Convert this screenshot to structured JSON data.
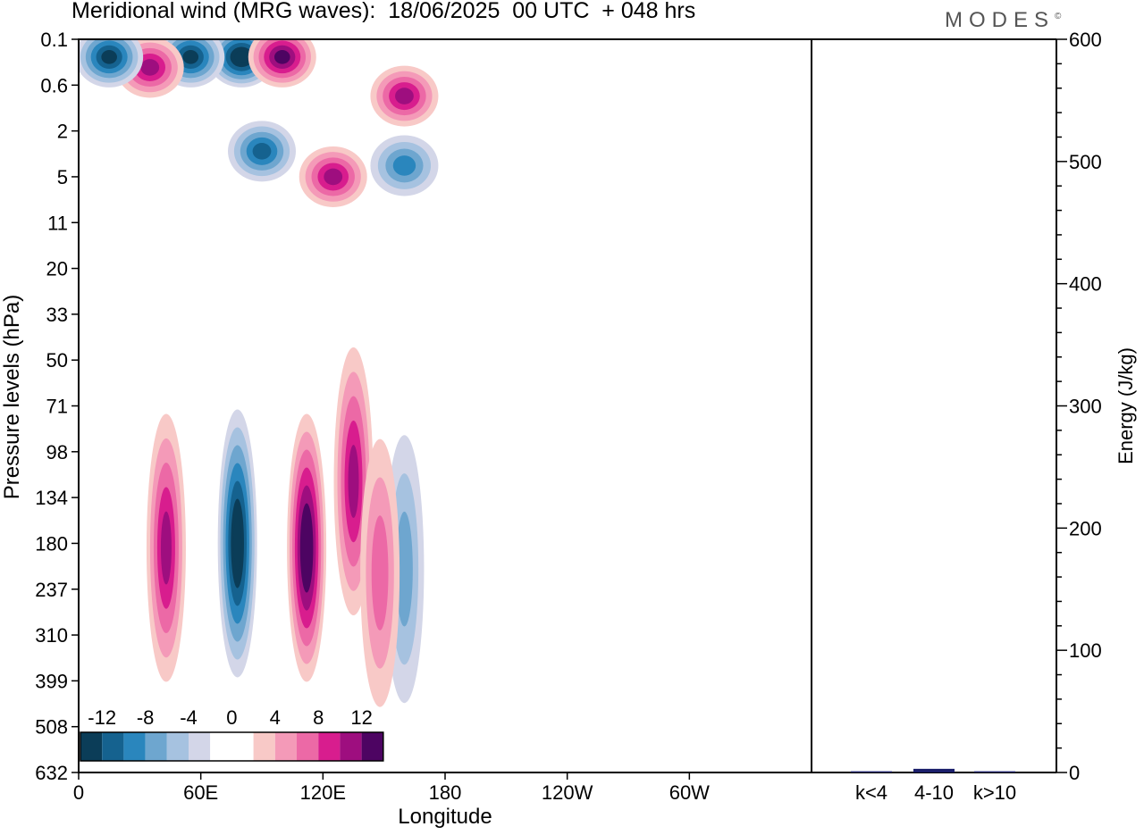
{
  "title": "Meridional wind (MRG waves):  18/06/2025  00 UTC  + 048 hrs",
  "brand": "MODES",
  "brand_mark": "©",
  "colors": {
    "neg": [
      "#0b3d58",
      "#15628f",
      "#2a86bd",
      "#6ea6cf",
      "#a6c2e0",
      "#d3d6e8"
    ],
    "pos": [
      "#f8c9c7",
      "#f49ab8",
      "#ec69a6",
      "#d81d8e",
      "#9e0e7f",
      "#4d0462"
    ]
  },
  "chart_data": [
    {
      "type": "heatmap",
      "title": "Meridional wind (MRG waves)",
      "xlabel": "Longitude",
      "ylabel": "Pressure levels (hPa)",
      "x_ticks": [
        "0",
        "60E",
        "120E",
        "180",
        "120W",
        "60W"
      ],
      "y_ticks": [
        "0.1",
        "0.6",
        "2",
        "5",
        "11",
        "20",
        "33",
        "50",
        "71",
        "98",
        "134",
        "180",
        "237",
        "310",
        "399",
        "508",
        "632"
      ],
      "colorbar": {
        "labels": [
          "-12",
          "-8",
          "-4",
          "0",
          "4",
          "8",
          "12"
        ],
        "levels": [
          -14,
          -12,
          -10,
          -8,
          -6,
          -4,
          -2,
          2,
          4,
          6,
          8,
          10,
          12,
          14
        ]
      },
      "features": [
        {
          "lon": 78,
          "level": 180,
          "value": -15
        },
        {
          "lon": 112,
          "level": 185,
          "value": 14
        },
        {
          "lon": 43,
          "level": 185,
          "value": 11
        },
        {
          "lon": 135,
          "level": 120,
          "value": 10
        },
        {
          "lon": 160,
          "level": 210,
          "value": -7
        },
        {
          "lon": 148,
          "level": 215,
          "value": 7
        },
        {
          "lon": 80,
          "level": 0.2,
          "value": -14
        },
        {
          "lon": 100,
          "level": 0.2,
          "value": 13
        },
        {
          "lon": 55,
          "level": 0.2,
          "value": -13
        },
        {
          "lon": 35,
          "level": 0.3,
          "value": 10
        },
        {
          "lon": 15,
          "level": 0.2,
          "value": -12
        },
        {
          "lon": 125,
          "level": 5,
          "value": 10
        },
        {
          "lon": 160,
          "level": 0.8,
          "value": 11
        },
        {
          "lon": 160,
          "level": 4,
          "value": -8
        },
        {
          "lon": 90,
          "level": 3,
          "value": -10
        }
      ]
    },
    {
      "type": "bar",
      "categories": [
        "k<4",
        "4-10",
        "k>10"
      ],
      "values": [
        1,
        3,
        1
      ],
      "ylabel": "Energy (J/kg)",
      "ylim": [
        0,
        600
      ],
      "y_ticks": [
        "0",
        "100",
        "200",
        "300",
        "400",
        "500",
        "600"
      ]
    }
  ]
}
